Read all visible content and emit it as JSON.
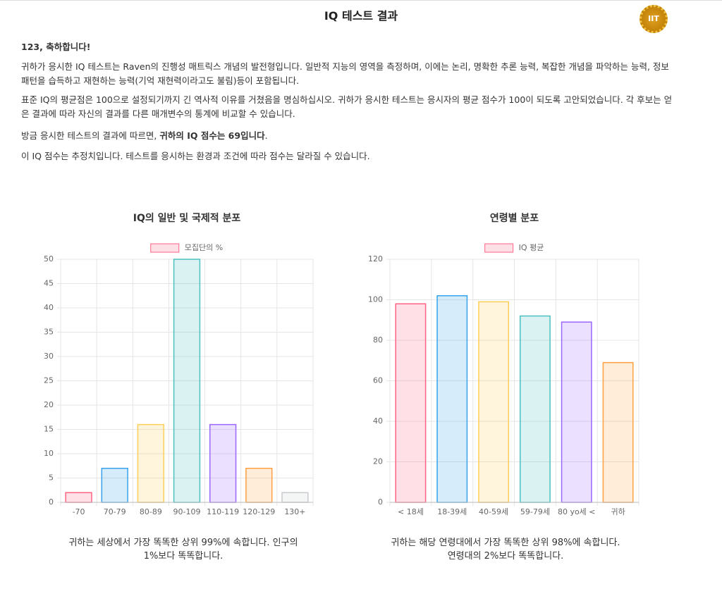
{
  "header": {
    "title": "IQ 테스트 결과",
    "badge": "IIT"
  },
  "intro": {
    "heading": "123, 축하합니다!",
    "p1": "귀하가 응시한 IQ 테스트는 Raven의 진행성 매트릭스 개념의 발전형입니다. 일반적 지능의 영역을 측정하며, 이에는 논리, 명확한 추론 능력, 복잡한 개념을 파악하는 능력, 정보 패턴을 습득하고 재현하는 능력(기억 재현력이라고도 불림)등이 포함됩니다.",
    "p2": "표준 IQ의 평균점은 100으로 설정되기까지 긴 역사적 이유를 거쳤음을 명심하십시오. 귀하가 응시한 테스트는 응시자의 평균 점수가 100이 되도록 고안되었습니다. 각 후보는 얻은 결과에 따라 자신의 결과를 다른 매개변수의 통계에 비교할 수 있습니다.",
    "p3_start": "방금 응시한 테스트의 결과에 따르면, ",
    "p3_bold": "귀하의 IQ 점수는 69입니다",
    "p3_end": ".",
    "p4": "이 IQ 점수는 추정치입니다. 테스트를 응시하는 환경과 조건에 따라 점수는 달라질 수 있습니다."
  },
  "chart_data": [
    {
      "type": "bar",
      "title": "IQ의 일반 및 국제적 분포",
      "legend": "모집단의 %",
      "legend_color": "rgb(255,99,132)",
      "categories": [
        "-70",
        "70-79",
        "80-89",
        "90-109",
        "110-119",
        "120-129",
        "130+"
      ],
      "values": [
        2,
        7,
        16,
        50,
        16,
        7,
        2
      ],
      "colors": [
        "rgb(255,99,132)",
        "rgb(54,162,235)",
        "rgb(255,206,86)",
        "rgb(75,192,192)",
        "rgb(153,102,255)",
        "rgb(255,159,64)",
        "rgb(201,203,207)"
      ],
      "ylim": [
        0,
        50
      ],
      "yticks": [
        0,
        5,
        10,
        15,
        20,
        25,
        30,
        35,
        40,
        45,
        50
      ],
      "grid": true,
      "caption": "귀하는 세상에서 가장 똑똑한 상위 99%에 속합니다. 인구의 1%보다 똑똑합니다."
    },
    {
      "type": "bar",
      "title": "연령별 분포",
      "legend": "IQ 평균",
      "legend_color": "rgb(255,99,132)",
      "categories": [
        "< 18세",
        "18-39세",
        "40-59세",
        "59-79세",
        "80 yo세 <",
        "귀하"
      ],
      "values": [
        98,
        102,
        99,
        92,
        89,
        69
      ],
      "colors": [
        "rgb(255,99,132)",
        "rgb(54,162,235)",
        "rgb(255,206,86)",
        "rgb(75,192,192)",
        "rgb(153,102,255)",
        "rgb(255,159,64)"
      ],
      "ylim": [
        0,
        120
      ],
      "yticks": [
        0,
        20,
        40,
        60,
        80,
        100,
        120
      ],
      "grid": true,
      "caption": "귀하는 해당 연령대에서 가장 똑똑한 상위 98%에 속합니다. 연령대의 2%보다 똑똑합니다."
    }
  ]
}
